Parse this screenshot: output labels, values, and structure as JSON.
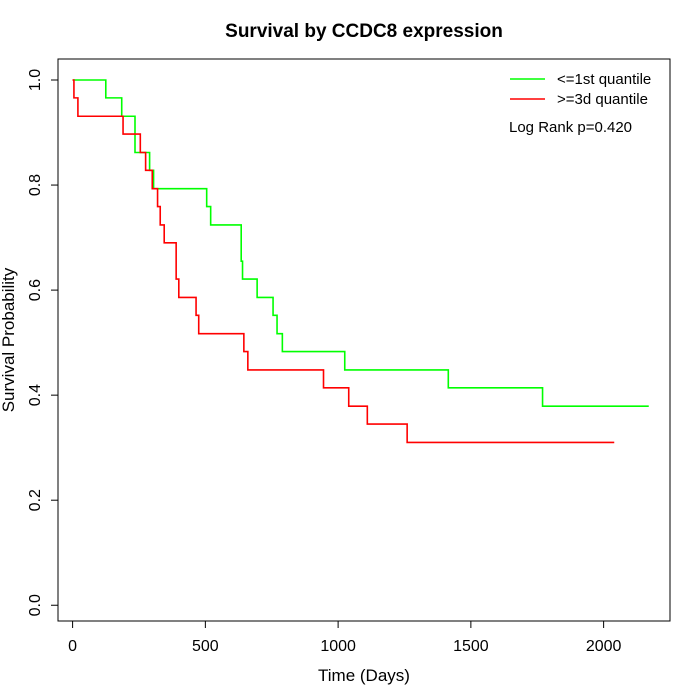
{
  "chart_data": {
    "type": "line",
    "title": "Survival by CCDC8 expression",
    "xlabel": "Time (Days)",
    "ylabel": "Survival Probability",
    "xlim": [
      -55,
      2250
    ],
    "ylim": [
      -0.03,
      1.04
    ],
    "x_ticks": [
      0,
      500,
      1000,
      1500,
      2000
    ],
    "y_ticks": [
      0.0,
      0.2,
      0.4,
      0.6,
      0.8,
      1.0
    ],
    "x_tick_labels": [
      "0",
      "500",
      "1000",
      "1500",
      "2000"
    ],
    "y_tick_labels": [
      "0.0",
      "0.2",
      "0.4",
      "0.6",
      "0.8",
      "1.0"
    ],
    "legend_position": "top-right",
    "annotation": "Log Rank p=0.420",
    "grid": false,
    "series": [
      {
        "name": "<=1st quantile",
        "color": "#00ff00",
        "step_points": [
          [
            0,
            1.0
          ],
          [
            125,
            0.966
          ],
          [
            185,
            0.931
          ],
          [
            235,
            0.862
          ],
          [
            290,
            0.828
          ],
          [
            305,
            0.793
          ],
          [
            505,
            0.759
          ],
          [
            520,
            0.724
          ],
          [
            635,
            0.655
          ],
          [
            640,
            0.621
          ],
          [
            695,
            0.586
          ],
          [
            755,
            0.552
          ],
          [
            770,
            0.517
          ],
          [
            790,
            0.483
          ],
          [
            1025,
            0.448
          ],
          [
            1415,
            0.414
          ],
          [
            1770,
            0.379
          ],
          [
            2170,
            0.379
          ]
        ]
      },
      {
        "name": ">=3d quantile",
        "color": "#ff0000",
        "step_points": [
          [
            0,
            1.0
          ],
          [
            5,
            0.966
          ],
          [
            20,
            0.931
          ],
          [
            190,
            0.897
          ],
          [
            255,
            0.862
          ],
          [
            275,
            0.828
          ],
          [
            300,
            0.793
          ],
          [
            320,
            0.759
          ],
          [
            330,
            0.724
          ],
          [
            345,
            0.69
          ],
          [
            390,
            0.621
          ],
          [
            400,
            0.586
          ],
          [
            465,
            0.552
          ],
          [
            475,
            0.517
          ],
          [
            645,
            0.483
          ],
          [
            660,
            0.448
          ],
          [
            945,
            0.414
          ],
          [
            1040,
            0.379
          ],
          [
            1110,
            0.345
          ],
          [
            1260,
            0.31
          ],
          [
            2040,
            0.31
          ]
        ]
      }
    ]
  }
}
